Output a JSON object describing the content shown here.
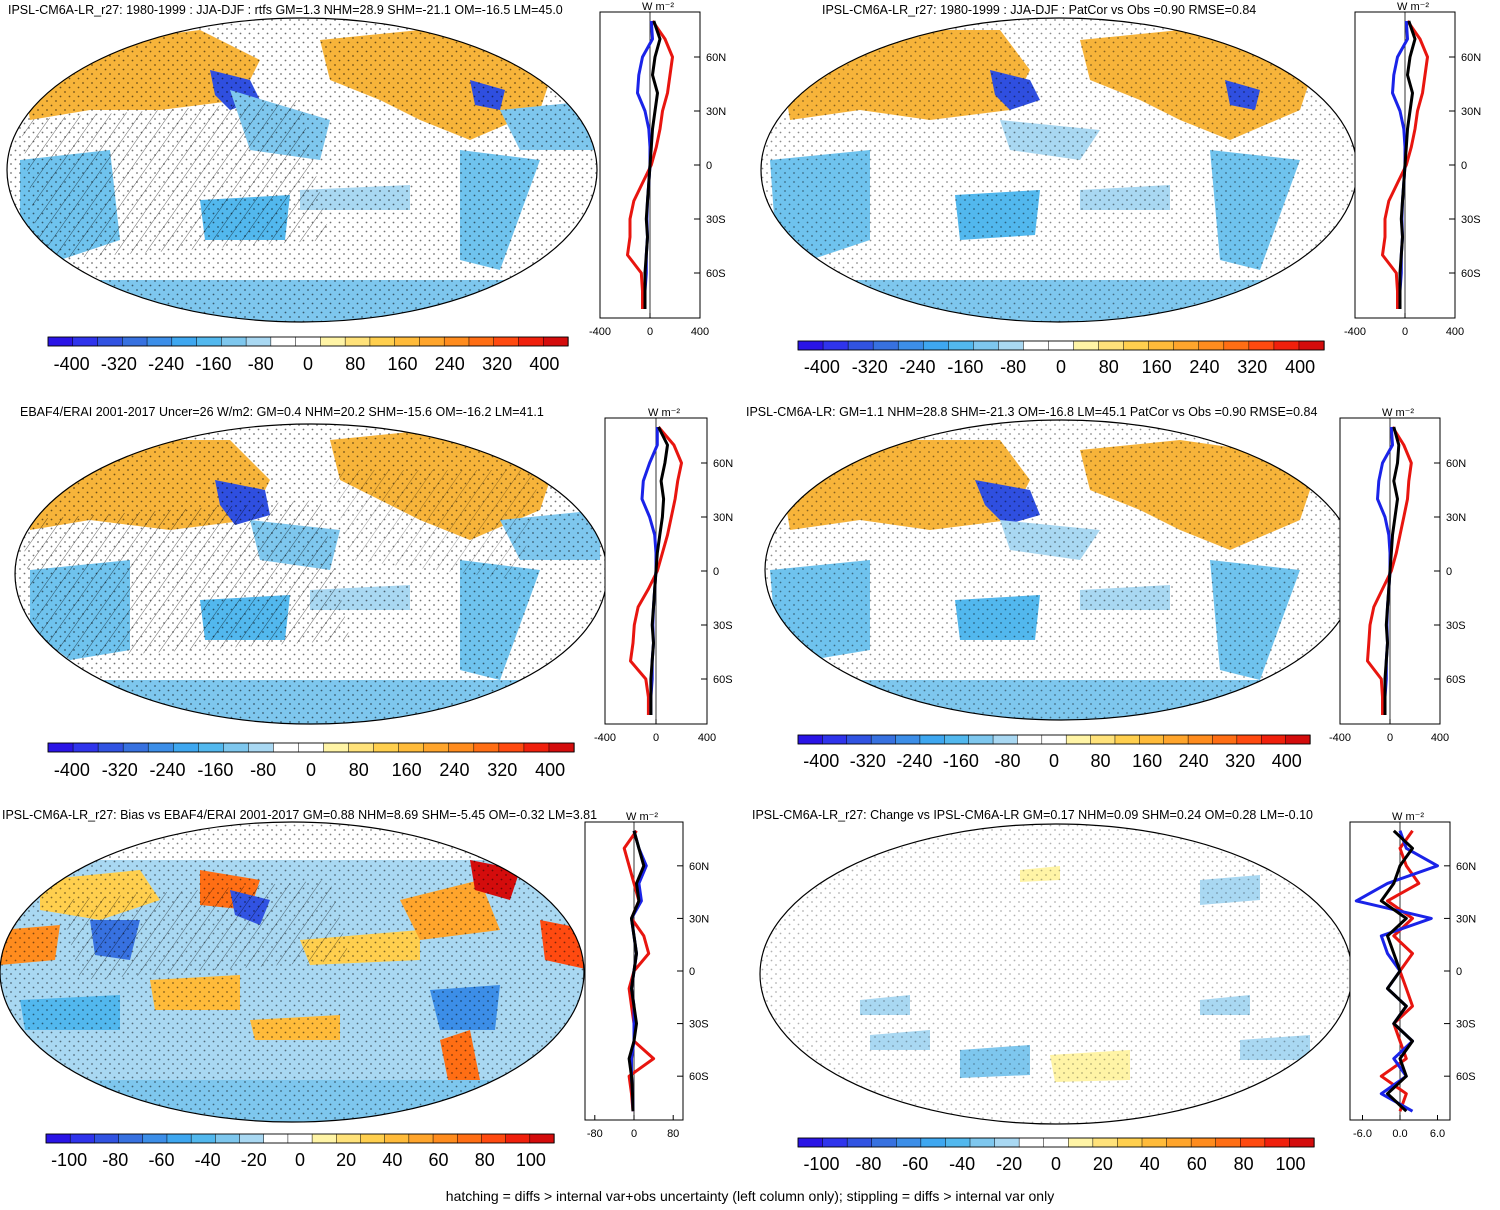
{
  "footer": "hatching = diffs > internal var+obs uncertainty (left column only); stippling = diffs > internal var only",
  "colors": {
    "palette": [
      "#2a14e6",
      "#2f34ec",
      "#3153e2",
      "#3771e0",
      "#3c8ee8",
      "#3ea7f0",
      "#52b8ee",
      "#7ec7ee",
      "#a9d8f2",
      "#ffffff",
      "#ffffff",
      "#fff4a6",
      "#ffe27a",
      "#ffcf4e",
      "#ffbb3a",
      "#ffa52c",
      "#ff8c1e",
      "#ff6e14",
      "#ff4a10",
      "#f0200c",
      "#d40c0c"
    ],
    "land": "#f4b032",
    "ocean_cool": "#6fc3ee",
    "zonal_model": "#000000",
    "zonal_obs": "#e8150f",
    "zonal_other": "#1a23e8"
  },
  "chart_data": [
    {
      "type": "map",
      "title": "IPSL-CM6A-LR_r27: 1980-1999 : JJA-DJF : rtfs GM=1.3 NHM=28.9 SHM=-21.1 OM=-16.5 LM=45.0",
      "colorbar_labels": [
        "-400",
        "-320",
        "-240",
        "-160",
        "-80",
        "0",
        "80",
        "160",
        "240",
        "320",
        "400"
      ],
      "zonal": {
        "unit_label": "W m⁻²",
        "lat_labels": [
          "60N",
          "30N",
          "0",
          "30S",
          "60S"
        ],
        "x_labels": [
          "-400",
          "0",
          "400"
        ],
        "xlim": [
          -400,
          400
        ],
        "lats": [
          80,
          70,
          60,
          50,
          40,
          30,
          20,
          10,
          0,
          -10,
          -20,
          -30,
          -40,
          -50,
          -60,
          -70,
          -80
        ],
        "model": [
          30,
          80,
          40,
          20,
          60,
          40,
          20,
          10,
          0,
          -10,
          -20,
          -30,
          -20,
          -30,
          -40,
          -40,
          -40
        ],
        "obs": [
          20,
          120,
          180,
          160,
          140,
          100,
          80,
          50,
          10,
          -60,
          -130,
          -160,
          -160,
          -180,
          -70,
          -60,
          -60
        ],
        "other": [
          10,
          20,
          -60,
          -90,
          -100,
          -40,
          -10,
          0,
          0,
          -10,
          -20,
          -25,
          -20,
          -30,
          -30,
          -40,
          -40
        ]
      }
    },
    {
      "type": "map",
      "title": "IPSL-CM6A-LR_r27: 1980-1999 : JJA-DJF : PatCor vs Obs =0.90 RMSE=0.84",
      "colorbar_labels": [
        "-400",
        "-320",
        "-240",
        "-160",
        "-80",
        "0",
        "80",
        "160",
        "240",
        "320",
        "400"
      ],
      "zonal": {
        "unit_label": "W m⁻²",
        "lat_labels": [
          "60N",
          "30N",
          "0",
          "30S",
          "60S"
        ],
        "x_labels": [
          "-400",
          "0",
          "400"
        ],
        "xlim": [
          -400,
          400
        ],
        "lats": [
          80,
          70,
          60,
          50,
          40,
          30,
          20,
          10,
          0,
          -10,
          -20,
          -30,
          -40,
          -50,
          -60,
          -70,
          -80
        ],
        "model": [
          30,
          80,
          40,
          20,
          60,
          40,
          20,
          10,
          0,
          -10,
          -20,
          -30,
          -20,
          -30,
          -40,
          -40,
          -40
        ],
        "obs": [
          20,
          120,
          180,
          160,
          140,
          100,
          80,
          50,
          10,
          -60,
          -130,
          -160,
          -160,
          -180,
          -70,
          -60,
          -60
        ],
        "other": [
          10,
          20,
          -60,
          -90,
          -100,
          -40,
          -10,
          0,
          0,
          -10,
          -20,
          -25,
          -20,
          -30,
          -30,
          -40,
          -40
        ]
      }
    },
    {
      "type": "map",
      "title": "EBAF4/ERAI 2001-2017 Uncer=26 W/m2: GM=0.4 NHM=20.2 SHM=-15.6 OM=-16.2 LM=41.1",
      "colorbar_labels": [
        "-400",
        "-320",
        "-240",
        "-160",
        "-80",
        "0",
        "80",
        "160",
        "240",
        "320",
        "400"
      ],
      "zonal": {
        "unit_label": "W m⁻²",
        "lat_labels": [
          "60N",
          "30N",
          "0",
          "30S",
          "60S"
        ],
        "x_labels": [
          "-400",
          "0",
          "400"
        ],
        "xlim": [
          -400,
          400
        ],
        "lats": [
          80,
          70,
          60,
          50,
          40,
          30,
          20,
          10,
          0,
          -10,
          -20,
          -30,
          -40,
          -50,
          -60,
          -70,
          -80
        ],
        "model": [
          20,
          90,
          70,
          40,
          60,
          50,
          30,
          10,
          0,
          -10,
          -20,
          -30,
          -20,
          -30,
          -40,
          -40,
          -40
        ],
        "obs": [
          20,
          140,
          200,
          170,
          150,
          120,
          90,
          50,
          10,
          -60,
          -140,
          -170,
          -180,
          -200,
          -80,
          -60,
          -60
        ],
        "other": [
          10,
          10,
          -50,
          -100,
          -110,
          -50,
          -10,
          0,
          0,
          -10,
          -20,
          -25,
          -20,
          -30,
          -30,
          -40,
          -40
        ]
      }
    },
    {
      "type": "map",
      "title": "IPSL-CM6A-LR: GM=1.1 NHM=28.8 SHM=-21.3 OM=-16.8 LM=45.1 PatCor vs Obs =0.90 RMSE=0.84",
      "colorbar_labels": [
        "-400",
        "-320",
        "-240",
        "-160",
        "-80",
        "0",
        "80",
        "160",
        "240",
        "320",
        "400"
      ],
      "zonal": {
        "unit_label": "W m⁻²",
        "lat_labels": [
          "60N",
          "30N",
          "0",
          "30S",
          "60S"
        ],
        "x_labels": [
          "-400",
          "0",
          "400"
        ],
        "xlim": [
          -400,
          400
        ],
        "lats": [
          80,
          70,
          60,
          50,
          40,
          30,
          20,
          10,
          0,
          -10,
          -20,
          -30,
          -40,
          -50,
          -60,
          -70,
          -80
        ],
        "model": [
          30,
          70,
          60,
          30,
          60,
          40,
          20,
          10,
          0,
          -10,
          -20,
          -30,
          -20,
          -30,
          -40,
          -40,
          -40
        ],
        "obs": [
          20,
          110,
          170,
          150,
          140,
          110,
          80,
          50,
          10,
          -60,
          -130,
          -160,
          -170,
          -180,
          -70,
          -60,
          -60
        ],
        "other": [
          10,
          20,
          -60,
          -90,
          -100,
          -40,
          -10,
          0,
          0,
          -10,
          -20,
          -25,
          -20,
          -30,
          -30,
          -40,
          -40
        ]
      }
    },
    {
      "type": "map",
      "title": "IPSL-CM6A-LR_r27: Bias vs EBAF4/ERAI 2001-2017 GM=0.88 NHM=8.69 SHM=-5.45 OM=-0.32 LM=3.81",
      "colorbar_labels": [
        "-100",
        "-80",
        "-60",
        "-40",
        "-20",
        "0",
        "20",
        "40",
        "60",
        "80",
        "100"
      ],
      "zonal": {
        "unit_label": "W m⁻²",
        "lat_labels": [
          "60N",
          "30N",
          "0",
          "30S",
          "60S"
        ],
        "x_labels": [
          "-80",
          "0",
          "80"
        ],
        "xlim": [
          -100,
          100
        ],
        "lats": [
          80,
          70,
          60,
          50,
          40,
          30,
          20,
          10,
          0,
          -10,
          -20,
          -30,
          -40,
          -50,
          -60,
          -70,
          -80
        ],
        "model": [
          0,
          10,
          20,
          5,
          10,
          -5,
          0,
          5,
          0,
          -5,
          0,
          5,
          0,
          -10,
          -5,
          -3,
          -2
        ],
        "obs": [
          5,
          -20,
          -10,
          0,
          10,
          -5,
          20,
          30,
          0,
          -10,
          -5,
          0,
          0,
          40,
          -10,
          -5,
          -2
        ],
        "other": [
          0,
          10,
          25,
          10,
          15,
          -5,
          0,
          5,
          0,
          -5,
          0,
          0,
          0,
          -5,
          -5,
          -3,
          -2
        ]
      }
    },
    {
      "type": "map",
      "title": "IPSL-CM6A-LR_r27: Change vs IPSL-CM6A-LR GM=0.17 NHM=0.09 SHM=0.24 OM=0.28 LM=-0.10",
      "colorbar_labels": [
        "-100",
        "-80",
        "-60",
        "-40",
        "-20",
        "0",
        "20",
        "40",
        "60",
        "80",
        "100"
      ],
      "zonal": {
        "unit_label": "W m⁻²",
        "lat_labels": [
          "60N",
          "30N",
          "0",
          "30S",
          "60S"
        ],
        "x_labels": [
          "-6.0",
          "0.0",
          "6.0"
        ],
        "xlim": [
          -8,
          8
        ],
        "lats": [
          80,
          70,
          60,
          50,
          40,
          30,
          20,
          10,
          0,
          -10,
          -20,
          -30,
          -40,
          -50,
          -60,
          -70,
          -80
        ],
        "model": [
          -1,
          2,
          0,
          -1,
          -3,
          1,
          -2,
          -1,
          0,
          -2,
          1,
          -1,
          2,
          0,
          1,
          -2,
          1
        ],
        "obs": [
          2,
          0,
          1,
          3,
          -2,
          2,
          -1,
          2,
          0,
          1,
          2,
          -1,
          0,
          1,
          -3,
          1,
          0
        ],
        "other": [
          0,
          1,
          6,
          -2,
          -7,
          5,
          -3,
          -2,
          0,
          -2,
          1,
          -1,
          2,
          -1,
          1,
          -3,
          2
        ]
      }
    }
  ]
}
